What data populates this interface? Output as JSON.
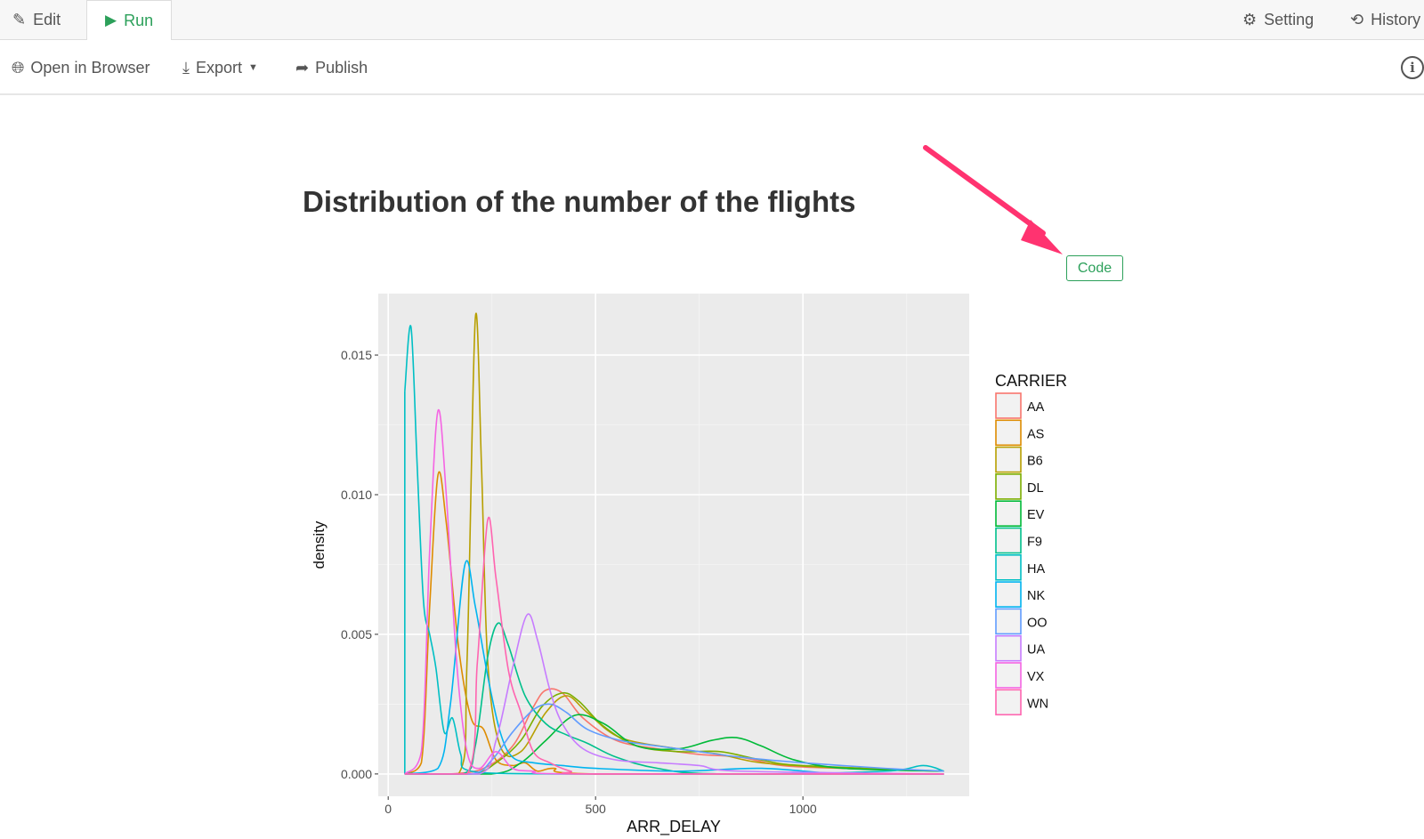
{
  "tabs": {
    "edit": "Edit",
    "run": "Run",
    "setting": "Setting",
    "history": "History"
  },
  "toolbar": {
    "open_browser": "Open in Browser",
    "export": "Export",
    "publish": "Publish"
  },
  "page": {
    "title": "Distribution of the number of the flights",
    "code_button": "Code"
  },
  "colors": {
    "accent": "#2ca05a",
    "arrow": "#ff3370",
    "panel": "#ebebeb"
  },
  "chart_data": {
    "type": "line",
    "title": "Distribution of the number of the flights",
    "xlabel": "ARR_DELAY",
    "ylabel": "density",
    "xlim": [
      -24,
      1401
    ],
    "ylim": [
      -0.0008,
      0.0172
    ],
    "xticks": [
      {
        "v": 0,
        "label": "0"
      },
      {
        "v": 500,
        "label": "500"
      },
      {
        "v": 1000,
        "label": "1000"
      }
    ],
    "yticks": [
      {
        "v": 0,
        "label": "0.000"
      },
      {
        "v": 0.005,
        "label": "0.005"
      },
      {
        "v": 0.01,
        "label": "0.010"
      },
      {
        "v": 0.015,
        "label": "0.015"
      }
    ],
    "legend": {
      "title": "CARRIER",
      "position": "right"
    },
    "series": [
      {
        "name": "AA",
        "color": "#F8766D",
        "points": [
          [
            40,
            0
          ],
          [
            150,
            0
          ],
          [
            230,
            0.0002
          ],
          [
            300,
            0.001
          ],
          [
            350,
            0.0024
          ],
          [
            380,
            0.003
          ],
          [
            420,
            0.0029
          ],
          [
            470,
            0.002
          ],
          [
            550,
            0.0012
          ],
          [
            650,
            0.0009
          ],
          [
            750,
            0.0007
          ],
          [
            850,
            0.0006
          ],
          [
            950,
            0.0003
          ],
          [
            1100,
            0.0002
          ],
          [
            1340,
            0.0001
          ]
        ]
      },
      {
        "name": "AS",
        "color": "#DE8C00",
        "points": [
          [
            40,
            0
          ],
          [
            80,
            0.0004
          ],
          [
            100,
            0.006
          ],
          [
            120,
            0.0107
          ],
          [
            140,
            0.009
          ],
          [
            170,
            0.0045
          ],
          [
            200,
            0.002
          ],
          [
            230,
            0.0016
          ],
          [
            260,
            0.0005
          ],
          [
            300,
            0.0003
          ],
          [
            330,
            0.0004
          ],
          [
            360,
            0.0001
          ],
          [
            400,
            0.0002
          ],
          [
            500,
            0
          ],
          [
            1340,
            0
          ]
        ]
      },
      {
        "name": "B6",
        "color": "#B79F00",
        "points": [
          [
            40,
            0
          ],
          [
            170,
            0
          ],
          [
            190,
            0.004
          ],
          [
            210,
            0.0163
          ],
          [
            225,
            0.011
          ],
          [
            240,
            0.004
          ],
          [
            270,
            0.001
          ],
          [
            320,
            0.0008
          ],
          [
            380,
            0.0022
          ],
          [
            430,
            0.0028
          ],
          [
            480,
            0.0022
          ],
          [
            560,
            0.0013
          ],
          [
            700,
            0.0009
          ],
          [
            800,
            0.0007
          ],
          [
            900,
            0.0004
          ],
          [
            1100,
            0.0002
          ],
          [
            1340,
            0.0001
          ]
        ]
      },
      {
        "name": "DL",
        "color": "#7CAE00",
        "points": [
          [
            40,
            0
          ],
          [
            200,
            0
          ],
          [
            260,
            0.0004
          ],
          [
            320,
            0.0012
          ],
          [
            370,
            0.0024
          ],
          [
            420,
            0.0029
          ],
          [
            460,
            0.0026
          ],
          [
            520,
            0.0017
          ],
          [
            600,
            0.001
          ],
          [
            700,
            0.0008
          ],
          [
            800,
            0.0008
          ],
          [
            900,
            0.0005
          ],
          [
            1000,
            0.0003
          ],
          [
            1340,
            0.0001
          ]
        ]
      },
      {
        "name": "EV",
        "color": "#00BA38",
        "points": [
          [
            40,
            0
          ],
          [
            250,
            0
          ],
          [
            320,
            0.0004
          ],
          [
            380,
            0.0012
          ],
          [
            450,
            0.0021
          ],
          [
            520,
            0.0018
          ],
          [
            600,
            0.001
          ],
          [
            700,
            0.0009
          ],
          [
            780,
            0.0012
          ],
          [
            840,
            0.0013
          ],
          [
            900,
            0.001
          ],
          [
            980,
            0.0005
          ],
          [
            1100,
            0.0002
          ],
          [
            1340,
            0.0001
          ]
        ]
      },
      {
        "name": "F9",
        "color": "#00C08B",
        "points": [
          [
            40,
            0
          ],
          [
            180,
            0
          ],
          [
            210,
            0.001
          ],
          [
            240,
            0.0042
          ],
          [
            265,
            0.0054
          ],
          [
            290,
            0.0046
          ],
          [
            330,
            0.0028
          ],
          [
            380,
            0.0018
          ],
          [
            430,
            0.0014
          ],
          [
            480,
            0.0011
          ],
          [
            550,
            0.0006
          ],
          [
            650,
            0.0002
          ],
          [
            800,
            0
          ],
          [
            1340,
            0
          ]
        ]
      },
      {
        "name": "HA",
        "color": "#00BFC4",
        "points": [
          [
            40,
            0.0137
          ],
          [
            55,
            0.016
          ],
          [
            70,
            0.011
          ],
          [
            85,
            0.0062
          ],
          [
            100,
            0.005
          ],
          [
            115,
            0.0038
          ],
          [
            135,
            0.0015
          ],
          [
            155,
            0.002
          ],
          [
            175,
            0.0007
          ],
          [
            200,
            0.0001
          ],
          [
            400,
            0
          ],
          [
            900,
            0
          ],
          [
            1200,
            0.0001
          ],
          [
            1290,
            0.0003
          ],
          [
            1340,
            0.0001
          ]
        ]
      },
      {
        "name": "NK",
        "color": "#00B4F0",
        "points": [
          [
            40,
            0
          ],
          [
            120,
            0.0002
          ],
          [
            150,
            0.0025
          ],
          [
            185,
            0.0075
          ],
          [
            210,
            0.006
          ],
          [
            240,
            0.0035
          ],
          [
            270,
            0.0015
          ],
          [
            300,
            0.0006
          ],
          [
            350,
            0.0004
          ],
          [
            420,
            0.0003
          ],
          [
            500,
            0.0002
          ],
          [
            700,
            0.0001
          ],
          [
            900,
            0.0002
          ],
          [
            1100,
            0
          ],
          [
            1340,
            0
          ]
        ]
      },
      {
        "name": "OO",
        "color": "#619CFF",
        "points": [
          [
            40,
            0
          ],
          [
            200,
            0
          ],
          [
            250,
            0.0005
          ],
          [
            300,
            0.0015
          ],
          [
            350,
            0.0023
          ],
          [
            390,
            0.0025
          ],
          [
            430,
            0.0022
          ],
          [
            480,
            0.0016
          ],
          [
            560,
            0.0012
          ],
          [
            650,
            0.001
          ],
          [
            750,
            0.0008
          ],
          [
            850,
            0.0006
          ],
          [
            1000,
            0.0004
          ],
          [
            1200,
            0.0002
          ],
          [
            1340,
            0.0001
          ]
        ]
      },
      {
        "name": "UA",
        "color": "#C77CFF",
        "points": [
          [
            40,
            0
          ],
          [
            220,
            0
          ],
          [
            260,
            0.0012
          ],
          [
            300,
            0.0038
          ],
          [
            335,
            0.0057
          ],
          [
            360,
            0.0048
          ],
          [
            390,
            0.003
          ],
          [
            420,
            0.0018
          ],
          [
            470,
            0.0009
          ],
          [
            550,
            0.0005
          ],
          [
            650,
            0.0004
          ],
          [
            750,
            0.0003
          ],
          [
            850,
            0.0001
          ],
          [
            1340,
            0
          ]
        ]
      },
      {
        "name": "VX",
        "color": "#F564E3",
        "points": [
          [
            40,
            0
          ],
          [
            80,
            0.0008
          ],
          [
            100,
            0.008
          ],
          [
            120,
            0.013
          ],
          [
            140,
            0.01
          ],
          [
            165,
            0.004
          ],
          [
            190,
            0.0008
          ],
          [
            220,
            0.0002
          ],
          [
            260,
            0.0008
          ],
          [
            300,
            0.0002
          ],
          [
            350,
            0.0001
          ],
          [
            450,
            0
          ],
          [
            1340,
            0
          ]
        ]
      },
      {
        "name": "WN",
        "color": "#FF64B0",
        "points": [
          [
            40,
            0
          ],
          [
            190,
            0
          ],
          [
            215,
            0.004
          ],
          [
            240,
            0.0091
          ],
          [
            260,
            0.007
          ],
          [
            290,
            0.0037
          ],
          [
            320,
            0.0022
          ],
          [
            350,
            0.0008
          ],
          [
            390,
            0.0004
          ],
          [
            440,
            0.0001
          ],
          [
            500,
            0
          ],
          [
            1340,
            0
          ]
        ]
      }
    ]
  }
}
